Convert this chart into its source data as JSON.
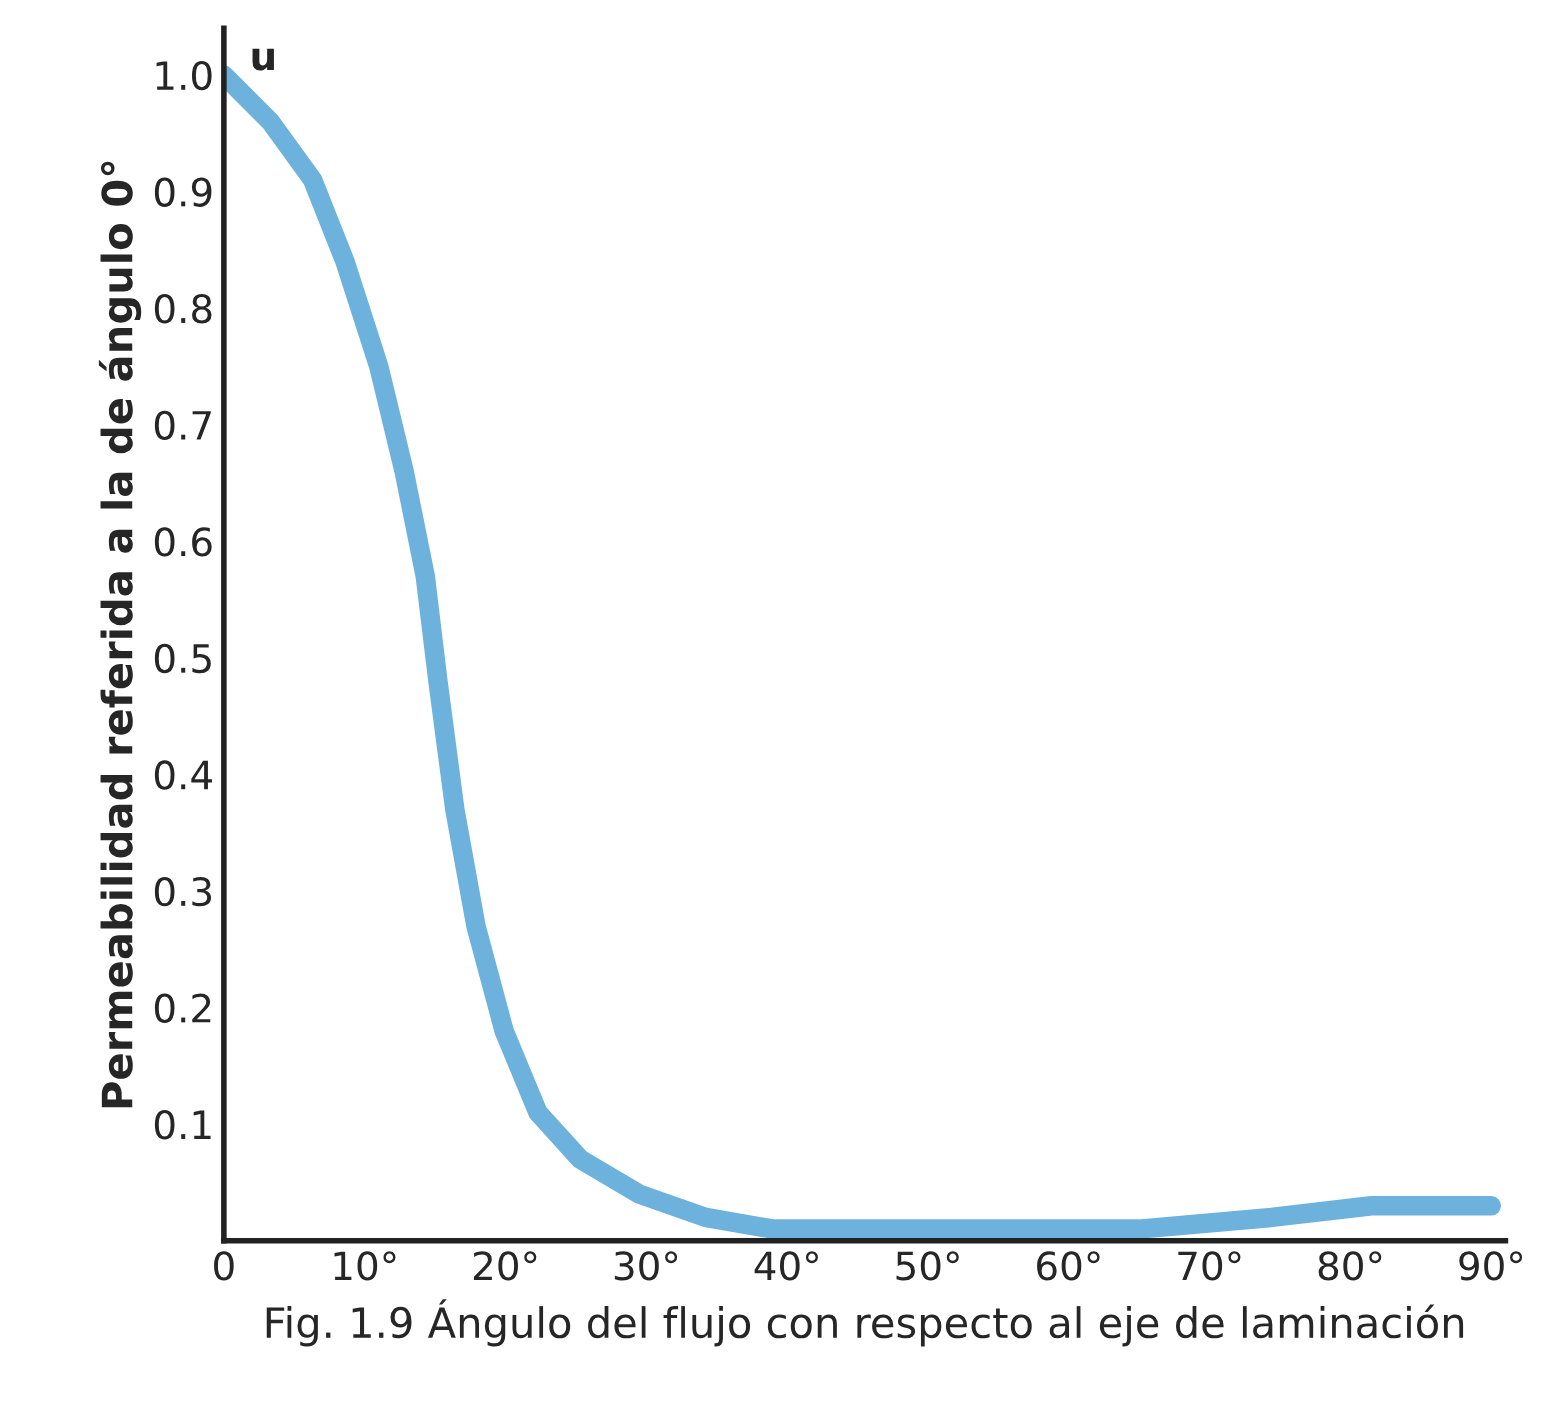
{
  "chart_data": {
    "type": "line",
    "xlabel": "Fig. 1.9 Ángulo del flujo con respecto al eje de laminación",
    "ylabel": "Permeabilidad referida a la de ángulo 0°",
    "annotations": [
      "u"
    ],
    "series": [
      {
        "color": "#6cb2dc",
        "x": [
          0,
          3.3,
          6.3,
          8.6,
          11.0,
          12.8,
          14.3,
          15.2,
          16.4,
          17.9,
          19.9,
          22.3,
          25.3,
          29.5,
          34.2,
          39,
          45.9,
          55.4,
          65,
          74.4,
          81.5,
          90
        ],
        "values": [
          1.0,
          0.96,
          0.91,
          0.84,
          0.75,
          0.66,
          0.57,
          0.48,
          0.37,
          0.27,
          0.18,
          0.11,
          0.07,
          0.04,
          0.02,
          0.01,
          0.01,
          0.01,
          0.01,
          0.02,
          0.03,
          0.03
        ]
      }
    ],
    "xlim": [
      0,
      91
    ],
    "ylim": [
      0,
      1.04
    ],
    "xticks": [
      0,
      {
        "value": 10,
        "label": "10°"
      },
      {
        "value": 20,
        "label": "20°"
      },
      {
        "value": 30,
        "label": "30°"
      },
      {
        "value": 40,
        "label": "40°"
      },
      {
        "value": 50,
        "label": "50°"
      },
      {
        "value": 60,
        "label": "60°"
      },
      {
        "value": 70,
        "label": "70°"
      },
      {
        "value": 80,
        "label": "80°"
      },
      {
        "value": 90,
        "label": "90°"
      }
    ],
    "yticks": [
      0.1,
      0.2,
      0.3,
      0.4,
      0.5,
      0.6,
      0.7,
      0.8,
      0.9,
      {
        "value": 1,
        "label": "1.0"
      }
    ],
    "grid": false,
    "legend": false,
    "marker": "none",
    "line_style": "solid"
  }
}
